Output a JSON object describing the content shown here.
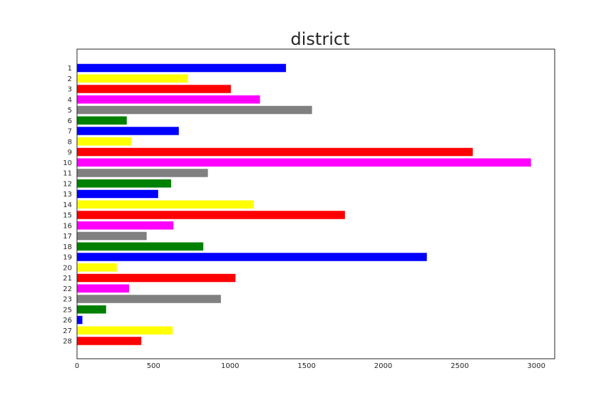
{
  "chart_data": {
    "type": "bar",
    "orientation": "horizontal",
    "title": "district",
    "xlabel": "",
    "ylabel": "",
    "xlim": [
      0,
      3120
    ],
    "grid": false,
    "x_ticks": [
      0,
      500,
      1000,
      1500,
      2000,
      2500,
      3000
    ],
    "categories": [
      "1",
      "2",
      "3",
      "4",
      "5",
      "6",
      "7",
      "8",
      "9",
      "10",
      "11",
      "12",
      "13",
      "14",
      "15",
      "16",
      "17",
      "18",
      "19",
      "20",
      "21",
      "22",
      "23",
      "25",
      "26",
      "27",
      "28"
    ],
    "values": [
      1365,
      725,
      1005,
      1195,
      1535,
      325,
      665,
      355,
      2585,
      2965,
      855,
      615,
      530,
      1155,
      1750,
      630,
      455,
      825,
      2285,
      260,
      1035,
      340,
      940,
      190,
      35,
      625,
      420
    ],
    "colors": [
      "#0000ff",
      "#ffff00",
      "#ff0000",
      "#ff00ff",
      "#808080",
      "#008000",
      "#0000ff",
      "#ffff00",
      "#ff0000",
      "#ff00ff",
      "#808080",
      "#008000",
      "#0000ff",
      "#ffff00",
      "#ff0000",
      "#ff00ff",
      "#808080",
      "#008000",
      "#0000ff",
      "#ffff00",
      "#ff0000",
      "#ff00ff",
      "#808080",
      "#008000",
      "#0000ff",
      "#ffff00",
      "#ff0000"
    ]
  }
}
